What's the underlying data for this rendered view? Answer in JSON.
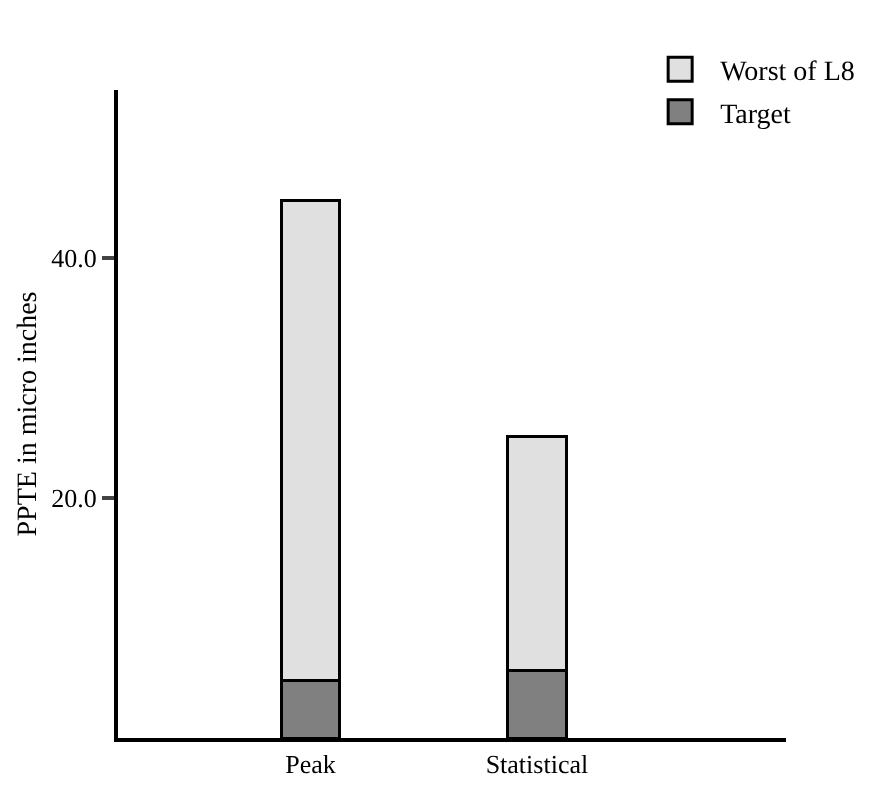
{
  "chart_data": {
    "type": "bar",
    "ylabel": "PPTE in micro inches",
    "categories": [
      "Peak",
      "Statistical"
    ],
    "stacked": true,
    "legend": "top right",
    "grid": false,
    "series": [
      {
        "name": "Target",
        "color": "#808080",
        "values": [
          4.8,
          5.6
        ]
      },
      {
        "name": "Worst of L8",
        "color": "#e0e0e0",
        "values": [
          40.0,
          19.5
        ]
      }
    ],
    "ylim": [
      0,
      54
    ],
    "yticks": [
      {
        "value": 20,
        "label": "20.0"
      },
      {
        "value": 40,
        "label": "40.0"
      }
    ]
  }
}
